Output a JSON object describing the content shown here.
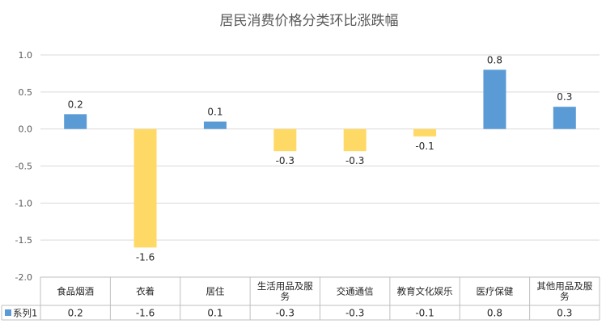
{
  "chart_data": {
    "type": "bar",
    "title": "居民消费价格分类环比涨跌幅",
    "categories": [
      [
        "食品烟酒"
      ],
      [
        "衣着"
      ],
      [
        "居住"
      ],
      [
        "生活用品及服",
        "务"
      ],
      [
        "交通通信"
      ],
      [
        "教育文化娱乐"
      ],
      [
        "医疗保健"
      ],
      [
        "其他用品及服",
        "务"
      ]
    ],
    "series": [
      {
        "name": "系列1",
        "values": [
          0.2,
          -1.6,
          0.1,
          -0.3,
          -0.3,
          -0.1,
          0.8,
          0.3
        ],
        "labels": [
          "0.2",
          "-1.6",
          "0.1",
          "-0.3",
          "-0.3",
          "-0.1",
          "0.8",
          "0.3"
        ]
      }
    ],
    "ylim": [
      -2.0,
      1.0
    ],
    "yticks": [
      1.0,
      0.5,
      0.0,
      -0.5,
      -1.0,
      -1.5,
      -2.0
    ],
    "ytick_labels": [
      "1.0",
      "0.5",
      "0.0",
      "-0.5",
      "-1.0",
      "-1.5",
      "-2.0"
    ],
    "colors": {
      "positive": "#5B9BD5",
      "negative": "#FFD966",
      "grid": "#D9D9D9",
      "table_border": "#BFBFBF"
    },
    "grid": true,
    "legend": "data-table"
  }
}
